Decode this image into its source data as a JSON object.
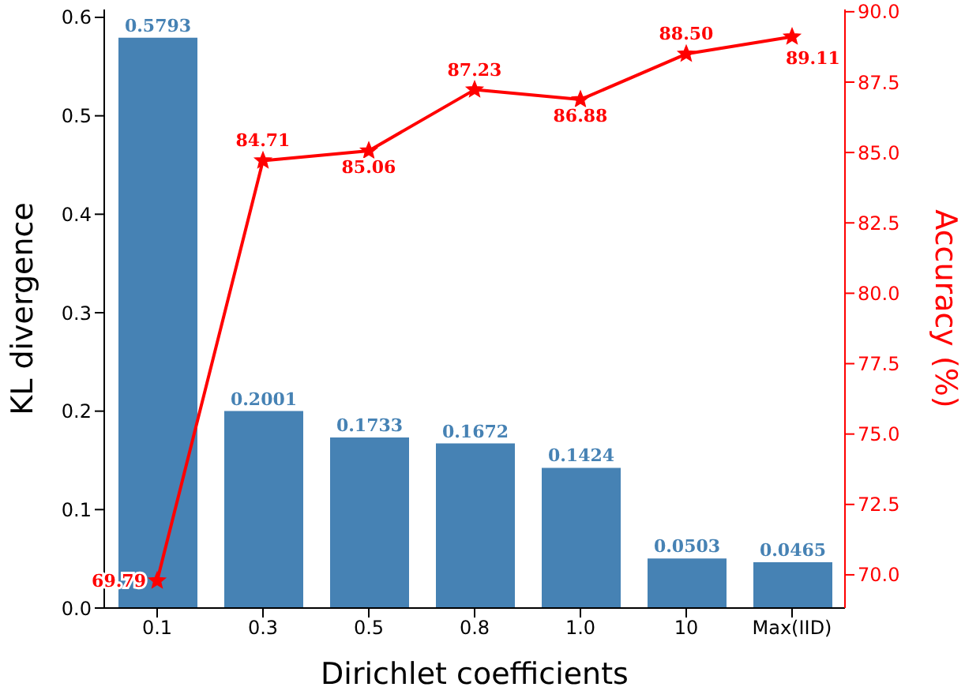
{
  "chart_data": {
    "type": "bar",
    "xlabel": "Dirichlet coefficients",
    "ylabel": "KL divergence",
    "y2label": "Accuracy (%)",
    "categories": [
      "0.1",
      "0.3",
      "0.5",
      "0.8",
      "1.0",
      "10",
      "Max(IID)"
    ],
    "series": [
      {
        "color": "#4682b4",
        "values": [
          0.5793,
          0.2001,
          0.1733,
          0.1672,
          0.1424,
          0.0503,
          0.0465
        ],
        "value_labels": [
          "0.5793",
          "0.2001",
          "0.1733",
          "0.1672",
          "0.1424",
          "0.0503",
          "0.0465"
        ]
      },
      {
        "type": "line",
        "axis": "y2",
        "color": "#ff0000",
        "marker": "star",
        "values": [
          69.79,
          84.71,
          85.06,
          87.23,
          86.88,
          88.5,
          89.11
        ],
        "value_labels": [
          "69.79",
          "84.71",
          "85.06",
          "87.23",
          "86.88",
          "88.50",
          "89.11"
        ]
      }
    ],
    "ylim": [
      0,
      0.608
    ],
    "yticks": [
      {
        "value": 0,
        "label": "0.0"
      },
      0.1,
      0.2,
      0.3,
      0.4,
      0.5,
      0.6
    ],
    "y2lim": [
      68.82,
      90.08
    ],
    "y2ticks": [
      {
        "value": 70,
        "label": "70.0"
      },
      72.5,
      {
        "value": 75,
        "label": "75.0"
      },
      77.5,
      {
        "value": 80,
        "label": "80.0"
      },
      82.5,
      {
        "value": 85,
        "label": "85.0"
      },
      87.5,
      {
        "value": 90,
        "label": "90.0"
      }
    ]
  }
}
